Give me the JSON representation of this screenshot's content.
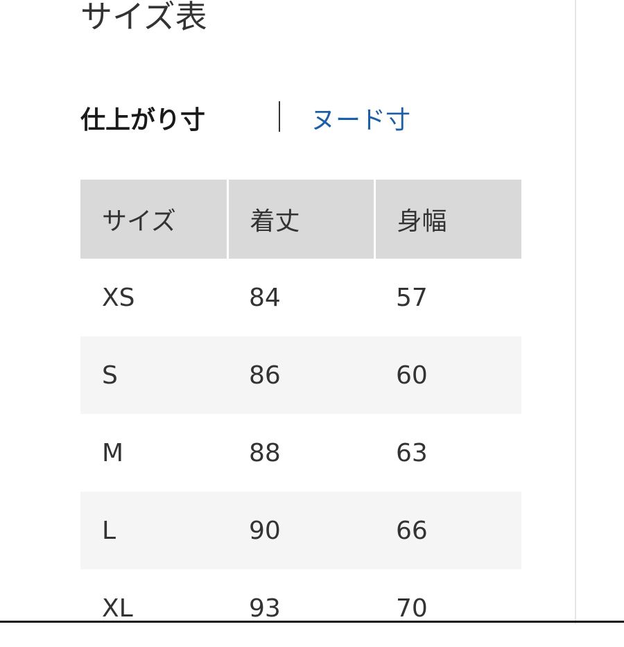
{
  "header": {
    "title": "サイズ表"
  },
  "tabs": [
    "仕上がり寸",
    "ヌード寸"
  ],
  "table": {
    "columns": [
      "サイズ",
      "着丈",
      "身幅"
    ],
    "rows": [
      [
        "XS",
        84,
        57
      ],
      [
        "S",
        86,
        60
      ],
      [
        "M",
        88,
        63
      ],
      [
        "L",
        90,
        66
      ],
      [
        "XL",
        93,
        70
      ]
    ]
  }
}
